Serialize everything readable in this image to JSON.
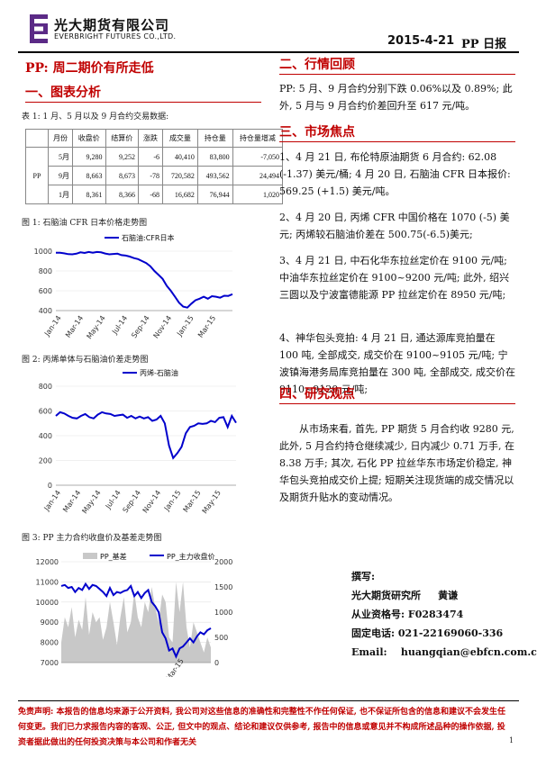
{
  "header": {
    "company_cn": "光大期货有限公司",
    "company_en": "EVERBRIGHT FUTURES CO.,LTD.",
    "date": "2015-4-21",
    "report_name": "PP 日报"
  },
  "main_title": "PP: 周二期价有所走低",
  "section1": {
    "title": "一、图表分析",
    "table_caption": "表 1: 1 月、5 月以及 9 月合约交易数据:",
    "table": {
      "headers": [
        "",
        "月份",
        "收盘价",
        "结算价",
        "涨跌",
        "成交量",
        "持仓量",
        "持仓量增减"
      ],
      "product": "PP",
      "rows": [
        [
          "5月",
          "9,280",
          "9,252",
          "-6",
          "40,410",
          "83,800",
          "-7,050"
        ],
        [
          "9月",
          "8,663",
          "8,673",
          "-78",
          "720,582",
          "493,562",
          "24,494"
        ],
        [
          "1月",
          "8,361",
          "8,366",
          "-68",
          "16,682",
          "76,944",
          "1,020"
        ]
      ]
    },
    "fig1_caption": "图 1: 石脑油 CFR 日本价格走势图",
    "fig2_caption": "图 2: 丙烯单体与石脑油价差走势图",
    "fig3_caption": "图 3: PP 主力合约收盘价及基差走势图"
  },
  "chart_data": [
    {
      "type": "line",
      "title": "",
      "series": [
        {
          "name": "石脑油:CFR日本",
          "color": "#0000cc",
          "values": [
            985,
            985,
            978,
            970,
            968,
            975,
            988,
            982,
            992,
            985,
            992,
            988,
            976,
            968,
            972,
            975,
            960,
            955,
            945,
            930,
            920,
            900,
            880,
            848,
            800,
            760,
            720,
            650,
            600,
            540,
            480,
            440,
            430,
            470,
            505,
            520,
            540,
            520,
            545,
            540,
            530,
            550,
            548,
            565
          ]
        }
      ],
      "x_ticks": [
        "Jan-14",
        "Mar-14",
        "May-14",
        "Jul-14",
        "Sep-14",
        "Nov-14",
        "Jan-15",
        "Mar-15"
      ],
      "y_ticks": [
        "400",
        "600",
        "800",
        "1000"
      ],
      "ylim": [
        400,
        1000
      ]
    },
    {
      "type": "line",
      "title": "",
      "series": [
        {
          "name": "丙烯-石脑油",
          "color": "#0000cc",
          "values": [
            560,
            590,
            580,
            560,
            545,
            540,
            560,
            575,
            550,
            540,
            570,
            590,
            580,
            575,
            560,
            565,
            570,
            545,
            560,
            540,
            555,
            540,
            550,
            520,
            530,
            560,
            500,
            320,
            220,
            260,
            310,
            420,
            470,
            480,
            500,
            495,
            500,
            520,
            510,
            545,
            550,
            470,
            560,
            505
          ]
        }
      ],
      "x_ticks": [
        "Jan-14",
        "Mar-14",
        "May-14",
        "Jul-14",
        "Sep-14",
        "Nov-14",
        "Jan-15",
        "Mar-15",
        "May-15"
      ],
      "y_ticks": [
        "0",
        "200",
        "400",
        "600",
        "800"
      ],
      "ylim": [
        0,
        800
      ]
    },
    {
      "type": "line",
      "title": "",
      "series": [
        {
          "name": "PP_基差",
          "color": "#c8c8c8",
          "axis": "right",
          "values": [
            400,
            900,
            700,
            1100,
            500,
            850,
            650,
            1300,
            550,
            1000,
            800,
            900,
            450,
            700,
            1200,
            800,
            350,
            900,
            1300,
            600,
            800,
            1400,
            900,
            700,
            1200,
            1000,
            1500,
            1100,
            800,
            1350,
            1200,
            500,
            400,
            1600,
            1000,
            1600,
            700,
            300,
            800,
            600,
            400,
            200,
            500,
            300
          ]
        },
        {
          "name": "PP_主力收盘价",
          "color": "#0000cc",
          "axis": "left",
          "values": [
            10800,
            10850,
            10700,
            10750,
            10500,
            10700,
            10600,
            10900,
            10650,
            10850,
            10800,
            10650,
            10500,
            10300,
            10700,
            10350,
            10500,
            10450,
            10550,
            10600,
            10800,
            10300,
            10500,
            10200,
            10450,
            10600,
            10000,
            9800,
            9500,
            8500,
            8200,
            7600,
            7700,
            7300,
            7700,
            7800,
            8000,
            8200,
            8000,
            8300,
            8500,
            8400,
            8600,
            8700
          ]
        }
      ],
      "y_ticks": [
        "7000",
        "8000",
        "9000",
        "10000",
        "11000",
        "12000"
      ],
      "y2_ticks": [
        "0",
        "500",
        "1000",
        "1500",
        "2000"
      ],
      "ylim": [
        7000,
        12000
      ],
      "y2lim": [
        0,
        2000
      ],
      "x_ticks": [
        "Mar-15"
      ]
    }
  ],
  "section2": {
    "title": "二、行情回顾",
    "text": "PP: 5 月、9 月合约分别下跌 0.06%以及 0.89%; 此外, 5 月与 9 月合约价差回升至 617 元/吨。"
  },
  "section3": {
    "title": "三、市场焦点",
    "items": [
      "1、4 月 21 日, 布伦特原油期货 6 月合约: 62.08 (-1.37) 美元/桶; 4 月 20 日, 石脑油 CFR 日本报价: 569.25 (+1.5) 美元/吨。",
      "2、4 月 20 日, 丙烯 CFR 中国价格在 1070 (-5) 美元; 丙烯较石脑油价差在 500.75(-6.5)美元;",
      "3、4 月 21 日, 中石化华东拉丝定价在 9100 元/吨; 中油华东拉丝定价在 9100~9200 元/吨; 此外, 绍兴三圆以及宁波富德能源 PP 拉丝定价在 8950 元/吨;",
      "4、神华包头竞拍: 4 月 21 日, 通达源库竞拍量在 100 吨, 全部成交, 成交价在 9100~9105 元/吨; 宁波镇海港务局库竞拍量在 300 吨, 全部成交, 成交价在 9110~9120 元/吨;"
    ]
  },
  "section4": {
    "title": "四、研究观点",
    "text": "从市场来看, 首先, PP 期货 5 月合约收 9280 元, 此外, 5 月合约持仓继续减少, 日内减少 0.71 万手, 在 8.38 万手; 其次, 石化 PP 拉丝华东市场定价稳定, 神华包头竞拍成交价上提; 短期关注现货端的成交情况以及期货升贴水的变动情况。"
  },
  "author": {
    "label": "撰写:",
    "org": "光大期货研究所",
    "name": "黄谦",
    "license_label": "从业资格号:",
    "license": "F0283474",
    "phone_label": "固定电话:",
    "phone": "021-22169060-336",
    "email_label": "Email:",
    "email": "huangqian@ebfcn.com.cn"
  },
  "footer": {
    "disclaimer": "免责声明: 本报告的信息均来源于公开资料, 我公司对这些信息的准确性和完整性不作任何保证, 也不保证所包含的信息和建议不会发生任何变更。我们已力求报告内容的客观、公正, 但文中的观点、结论和建议仅供参考, 报告中的信息或意见并不构成所述品种的操作依据, 投资者据此做出的任何投资决策与本公司和作者无关",
    "page": "1"
  }
}
